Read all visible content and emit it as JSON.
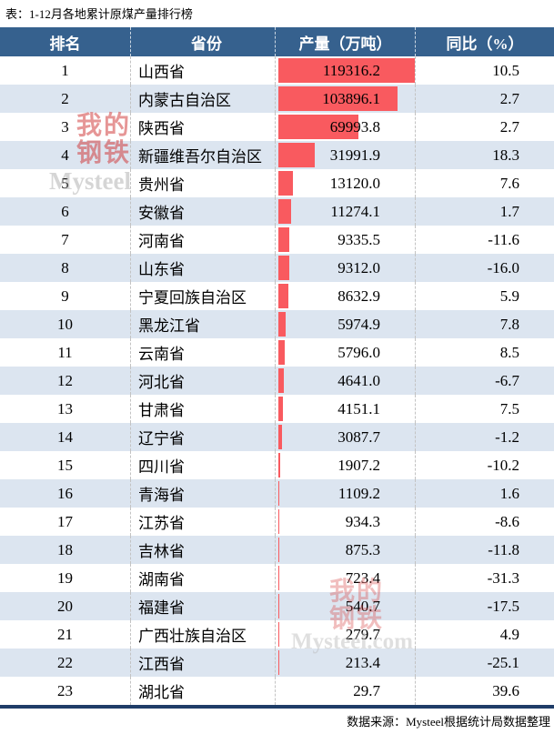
{
  "title": "表：1-12月各地累计原煤产量排行榜",
  "source": "数据来源：Mysteel根据统计局数据整理",
  "columns": [
    "排名",
    "省份",
    "产量（万吨）",
    "同比（%）"
  ],
  "colors": {
    "header_bg": "#36618E",
    "row_alt_bg": "#DCE5F0",
    "bar": "#F95A5F",
    "rule": "#1F3D68"
  },
  "watermarks": [
    {
      "line1": "我的",
      "line2": "钢铁",
      "en": "Mysteel"
    },
    {
      "line1": "我的",
      "line2": "钢铁",
      "en": "Mysteel.com"
    }
  ],
  "chart_data": {
    "type": "bar",
    "title": "表：1-12月各地累计原煤产量排行榜",
    "xlabel": "产量（万吨）",
    "ylabel": "省份",
    "legend_position": "none",
    "grid": false,
    "categories": [
      "山西省",
      "内蒙古自治区",
      "陕西省",
      "新疆维吾尔自治区",
      "贵州省",
      "安徽省",
      "河南省",
      "山东省",
      "宁夏回族自治区",
      "黑龙江省",
      "云南省",
      "河北省",
      "甘肃省",
      "辽宁省",
      "四川省",
      "青海省",
      "江苏省",
      "吉林省",
      "湖南省",
      "福建省",
      "广西壮族自治区",
      "江西省",
      "湖北省"
    ],
    "series": [
      {
        "name": "产量（万吨）",
        "values": [
          119316.2,
          103896.1,
          69993.8,
          31991.9,
          13120.0,
          11274.1,
          9335.5,
          9312.0,
          8632.9,
          5974.9,
          5796.0,
          4641.0,
          4151.1,
          3087.7,
          1907.2,
          1109.2,
          934.3,
          875.3,
          723.4,
          540.7,
          279.7,
          213.4,
          29.7
        ]
      },
      {
        "name": "同比（%）",
        "values": [
          10.5,
          2.7,
          2.7,
          18.3,
          7.6,
          1.7,
          -11.6,
          -16.0,
          5.9,
          7.8,
          8.5,
          -6.7,
          7.5,
          -1.2,
          -10.2,
          1.6,
          -8.6,
          -11.8,
          -31.3,
          -17.5,
          4.9,
          -25.1,
          39.6
        ]
      }
    ],
    "xlim": [
      0,
      119316.2
    ]
  },
  "rows": [
    {
      "rank": "1",
      "province": "山西省",
      "production": "119316.2",
      "production_value": 119316.2,
      "yoy": "10.5"
    },
    {
      "rank": "2",
      "province": "内蒙古自治区",
      "production": "103896.1",
      "production_value": 103896.1,
      "yoy": "2.7"
    },
    {
      "rank": "3",
      "province": "陕西省",
      "production": "69993.8",
      "production_value": 69993.8,
      "yoy": "2.7"
    },
    {
      "rank": "4",
      "province": "新疆维吾尔自治区",
      "production": "31991.9",
      "production_value": 31991.9,
      "yoy": "18.3"
    },
    {
      "rank": "5",
      "province": "贵州省",
      "production": "13120.0",
      "production_value": 13120.0,
      "yoy": "7.6"
    },
    {
      "rank": "6",
      "province": "安徽省",
      "production": "11274.1",
      "production_value": 11274.1,
      "yoy": "1.7"
    },
    {
      "rank": "7",
      "province": "河南省",
      "production": "9335.5",
      "production_value": 9335.5,
      "yoy": "-11.6"
    },
    {
      "rank": "8",
      "province": "山东省",
      "production": "9312.0",
      "production_value": 9312.0,
      "yoy": "-16.0"
    },
    {
      "rank": "9",
      "province": "宁夏回族自治区",
      "production": "8632.9",
      "production_value": 8632.9,
      "yoy": "5.9"
    },
    {
      "rank": "10",
      "province": "黑龙江省",
      "production": "5974.9",
      "production_value": 5974.9,
      "yoy": "7.8"
    },
    {
      "rank": "11",
      "province": "云南省",
      "production": "5796.0",
      "production_value": 5796.0,
      "yoy": "8.5"
    },
    {
      "rank": "12",
      "province": "河北省",
      "production": "4641.0",
      "production_value": 4641.0,
      "yoy": "-6.7"
    },
    {
      "rank": "13",
      "province": "甘肃省",
      "production": "4151.1",
      "production_value": 4151.1,
      "yoy": "7.5"
    },
    {
      "rank": "14",
      "province": "辽宁省",
      "production": "3087.7",
      "production_value": 3087.7,
      "yoy": "-1.2"
    },
    {
      "rank": "15",
      "province": "四川省",
      "production": "1907.2",
      "production_value": 1907.2,
      "yoy": "-10.2"
    },
    {
      "rank": "16",
      "province": "青海省",
      "production": "1109.2",
      "production_value": 1109.2,
      "yoy": "1.6"
    },
    {
      "rank": "17",
      "province": "江苏省",
      "production": "934.3",
      "production_value": 934.3,
      "yoy": "-8.6"
    },
    {
      "rank": "18",
      "province": "吉林省",
      "production": "875.3",
      "production_value": 875.3,
      "yoy": "-11.8"
    },
    {
      "rank": "19",
      "province": "湖南省",
      "production": "723.4",
      "production_value": 723.4,
      "yoy": "-31.3"
    },
    {
      "rank": "20",
      "province": "福建省",
      "production": "540.7",
      "production_value": 540.7,
      "yoy": "-17.5"
    },
    {
      "rank": "21",
      "province": "广西壮族自治区",
      "production": "279.7",
      "production_value": 279.7,
      "yoy": "4.9"
    },
    {
      "rank": "22",
      "province": "江西省",
      "production": "213.4",
      "production_value": 213.4,
      "yoy": "-25.1"
    },
    {
      "rank": "23",
      "province": "湖北省",
      "production": "29.7",
      "production_value": 29.7,
      "yoy": "39.6"
    }
  ]
}
